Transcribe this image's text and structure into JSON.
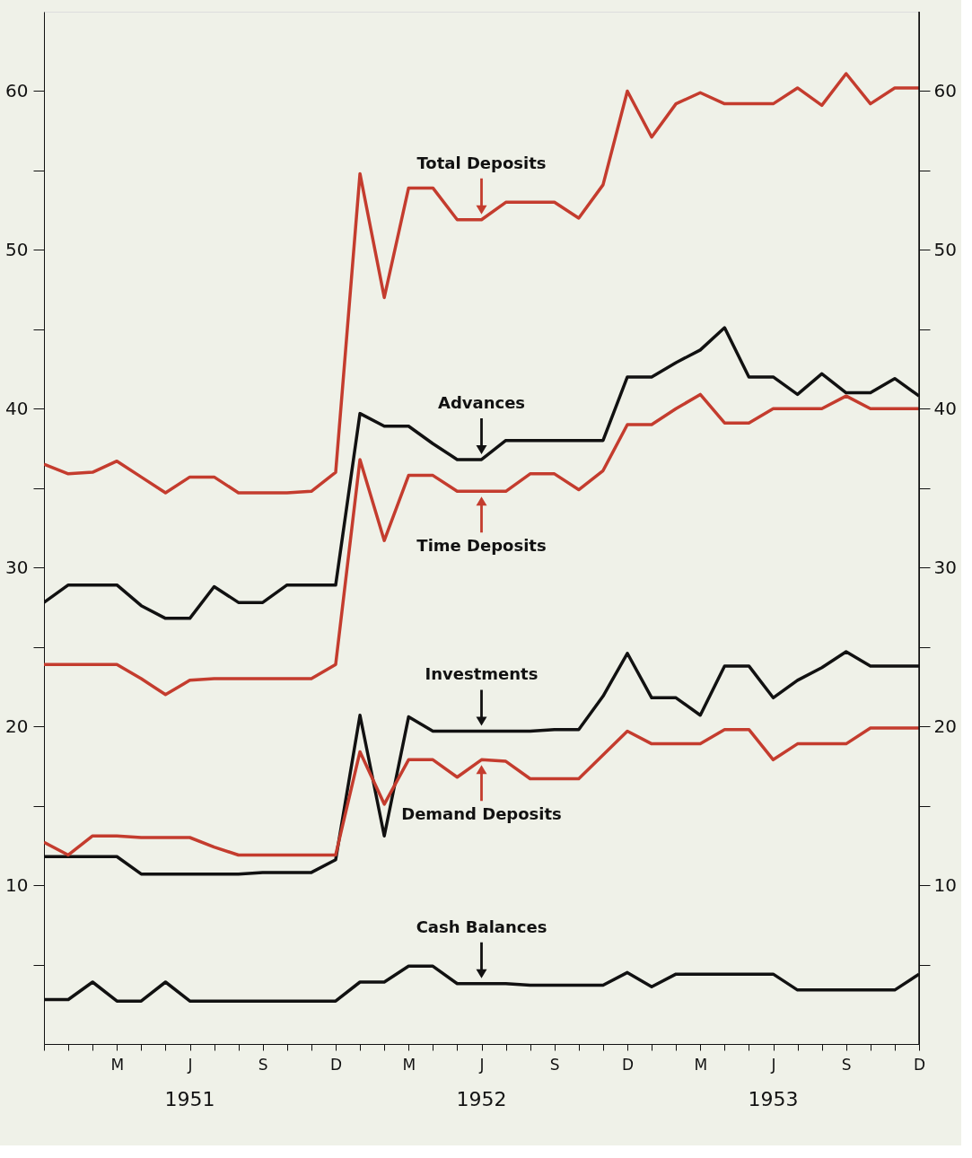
{
  "chart_data": {
    "type": "line",
    "categories": [
      null,
      null,
      null,
      "M",
      null,
      null,
      "J",
      null,
      null,
      "S",
      null,
      null,
      "D",
      null,
      null,
      "M",
      null,
      null,
      "J",
      null,
      null,
      "S",
      null,
      null,
      "D",
      null,
      null,
      "M",
      null,
      null,
      "J",
      null,
      null,
      "S",
      null,
      null,
      "D"
    ],
    "series": [
      {
        "name": "Total Deposits",
        "color": "#c43c2e",
        "values": [
          36.5,
          35.9,
          36.0,
          36.7,
          35.7,
          34.7,
          35.7,
          35.7,
          34.7,
          34.7,
          34.7,
          34.8,
          36.0,
          54.8,
          47.0,
          53.9,
          53.9,
          51.9,
          51.9,
          53.0,
          53.0,
          53.0,
          52.0,
          54.1,
          60.0,
          57.1,
          59.2,
          59.9,
          59.2,
          59.2,
          59.2,
          60.2,
          59.1,
          61.1,
          59.2,
          60.2,
          60.2
        ]
      },
      {
        "name": "Advances",
        "color": "#111111",
        "values": [
          27.8,
          28.9,
          28.9,
          28.9,
          27.6,
          26.8,
          26.8,
          28.8,
          27.8,
          27.8,
          28.9,
          28.9,
          28.9,
          39.7,
          38.9,
          38.9,
          37.8,
          36.8,
          36.8,
          38.0,
          38.0,
          38.0,
          38.0,
          38.0,
          42.0,
          42.0,
          42.9,
          43.7,
          45.1,
          42.0,
          42.0,
          40.9,
          42.2,
          41.0,
          41.0,
          41.9,
          40.8
        ]
      },
      {
        "name": "Time Deposits",
        "color": "#c43c2e",
        "values": [
          23.9,
          23.9,
          23.9,
          23.9,
          23.0,
          22.0,
          22.9,
          23.0,
          23.0,
          23.0,
          23.0,
          23.0,
          23.9,
          36.8,
          31.7,
          35.8,
          35.8,
          34.8,
          34.8,
          34.8,
          35.9,
          35.9,
          34.9,
          36.1,
          39.0,
          39.0,
          40.0,
          40.9,
          39.1,
          39.1,
          40.0,
          40.0,
          40.0,
          40.8,
          40.0,
          40.0,
          40.0
        ]
      },
      {
        "name": "Investments",
        "color": "#111111",
        "values": [
          11.8,
          11.8,
          11.8,
          11.8,
          10.7,
          10.7,
          10.7,
          10.7,
          10.7,
          10.8,
          10.8,
          10.8,
          11.6,
          20.7,
          13.1,
          20.6,
          19.7,
          19.7,
          19.7,
          19.7,
          19.7,
          19.8,
          19.8,
          21.9,
          24.6,
          21.8,
          21.8,
          20.7,
          23.8,
          23.8,
          21.8,
          22.9,
          23.7,
          24.7,
          23.8,
          23.8,
          23.8
        ]
      },
      {
        "name": "Demand Deposits",
        "color": "#c43c2e",
        "values": [
          12.7,
          11.9,
          13.1,
          13.1,
          13.0,
          13.0,
          13.0,
          12.4,
          11.9,
          11.9,
          11.9,
          11.9,
          11.9,
          18.4,
          15.1,
          17.9,
          17.9,
          16.8,
          17.9,
          17.8,
          16.7,
          16.7,
          16.7,
          18.2,
          19.7,
          18.9,
          18.9,
          18.9,
          19.8,
          19.8,
          17.9,
          18.9,
          18.9,
          18.9,
          19.9,
          19.9,
          19.9
        ]
      },
      {
        "name": "Cash Balances",
        "color": "#111111",
        "values": [
          2.8,
          2.8,
          3.9,
          2.7,
          2.7,
          3.9,
          2.7,
          2.7,
          2.7,
          2.7,
          2.7,
          2.7,
          2.7,
          3.9,
          3.9,
          4.9,
          4.9,
          3.8,
          3.8,
          3.8,
          3.7,
          3.7,
          3.7,
          3.7,
          4.5,
          3.6,
          4.4,
          4.4,
          4.4,
          4.4,
          4.4,
          3.4,
          3.4,
          3.4,
          3.4,
          3.4,
          4.4
        ]
      }
    ],
    "ylim": [
      0,
      65
    ],
    "yticks": [
      {
        "value": 5,
        "label": null
      },
      10,
      {
        "value": 15,
        "label": null
      },
      20,
      {
        "value": 25,
        "label": null
      },
      30,
      {
        "value": 35,
        "label": null
      },
      40,
      {
        "value": 45,
        "label": null
      },
      50,
      {
        "value": 55,
        "label": null
      },
      60
    ],
    "y2lim": [
      0,
      65
    ],
    "y2ticks": [
      {
        "value": 5,
        "label": null
      },
      10,
      {
        "value": 15,
        "label": null
      },
      20,
      {
        "value": 25,
        "label": null
      },
      30,
      {
        "value": 35,
        "label": null
      },
      40,
      {
        "value": 45,
        "label": null
      },
      50,
      {
        "value": 55,
        "label": null
      },
      60
    ],
    "annotations": [
      "1951",
      "1952",
      "1953"
    ],
    "grid": false,
    "legend": "center",
    "line_style": "solid"
  }
}
